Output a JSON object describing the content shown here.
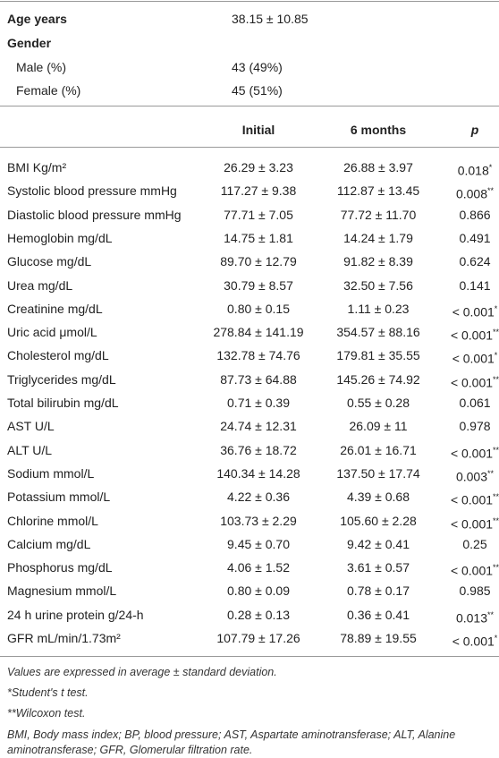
{
  "summary": [
    {
      "label": "Age years",
      "value": "38.15 ± 10.85",
      "bold": true
    },
    {
      "label": "Gender",
      "bold": true
    },
    {
      "label": "Male (%)",
      "value": "43 (49%)"
    },
    {
      "label": "Female (%)",
      "value": "45 (51%)"
    }
  ],
  "table": {
    "columns": [
      "Initial",
      "6 months",
      "p"
    ],
    "rows": [
      {
        "label": "BMI Kg/m²",
        "initial": "26.29 ± 3.23",
        "six_months": "26.88 ± 3.97",
        "p": "0.018",
        "sig": "*"
      },
      {
        "label": "Systolic blood pressure mmHg",
        "initial": "117.27 ± 9.38",
        "six_months": "112.87 ± 13.45",
        "p": "0.008",
        "sig": "**"
      },
      {
        "label": "Diastolic blood pressure mmHg",
        "initial": "77.71 ± 7.05",
        "six_months": "77.72 ± 11.70",
        "p": "0.866"
      },
      {
        "label": "Hemoglobin mg/dL",
        "initial": "14.75 ± 1.81",
        "six_months": "14.24 ± 1.79",
        "p": "0.491"
      },
      {
        "label": "Glucose mg/dL",
        "initial": "89.70 ± 12.79",
        "six_months": "91.82 ± 8.39",
        "p": "0.624"
      },
      {
        "label": "Urea mg/dL",
        "initial": "30.79 ± 8.57",
        "six_months": "32.50 ± 7.56",
        "p": "0.141"
      },
      {
        "label": "Creatinine mg/dL",
        "initial": "0.80 ± 0.15",
        "six_months": "1.11 ± 0.23",
        "p": "< 0.001",
        "sig": "*"
      },
      {
        "label": "Uric acid μmol/L",
        "initial": "278.84 ± 141.19",
        "six_months": "354.57 ± 88.16",
        "p": "< 0.001",
        "sig": "**"
      },
      {
        "label": "Cholesterol mg/dL",
        "initial": "132.78 ± 74.76",
        "six_months": "179.81 ± 35.55",
        "p": "< 0.001",
        "sig": "*"
      },
      {
        "label": "Triglycerides mg/dL",
        "initial": "87.73 ± 64.88",
        "six_months": "145.26 ± 74.92",
        "p": "< 0.001",
        "sig": "**"
      },
      {
        "label": "Total bilirubin mg/dL",
        "initial": "0.71 ± 0.39",
        "six_months": "0.55 ± 0.28",
        "p": "0.061"
      },
      {
        "label": "AST U/L",
        "initial": "24.74 ± 12.31",
        "six_months": "26.09 ± 11",
        "p": "0.978"
      },
      {
        "label": "ALT U/L",
        "initial": "36.76 ± 18.72",
        "six_months": "26.01 ± 16.71",
        "p": "< 0.001",
        "sig": "**"
      },
      {
        "label": "Sodium mmol/L",
        "initial": "140.34 ± 14.28",
        "six_months": "137.50 ± 17.74",
        "p": "0.003",
        "sig": "**"
      },
      {
        "label": "Potassium mmol/L",
        "initial": "4.22 ± 0.36",
        "six_months": "4.39 ± 0.68",
        "p": "< 0.001",
        "sig": "**"
      },
      {
        "label": "Chlorine mmol/L",
        "initial": "103.73 ± 2.29",
        "six_months": "105.60 ± 2.28",
        "p": "< 0.001",
        "sig": "**"
      },
      {
        "label": "Calcium mg/dL",
        "initial": "9.45 ± 0.70",
        "six_months": "9.42 ± 0.41",
        "p": "0.25"
      },
      {
        "label": "Phosphorus mg/dL",
        "initial": "4.06 ± 1.52",
        "six_months": "3.61 ± 0.57",
        "p": "< 0.001",
        "sig": "**"
      },
      {
        "label": "Magnesium mmol/L",
        "initial": "0.80 ± 0.09",
        "six_months": "0.78 ± 0.17",
        "p": "0.985"
      },
      {
        "label": "24 h urine protein g/24-h",
        "initial": "0.28 ± 0.13",
        "six_months": "0.36 ± 0.41",
        "p": "0.013",
        "sig": "**"
      },
      {
        "label": "GFR mL/min/1.73m²",
        "initial": "107.79 ± 17.26",
        "six_months": "78.89 ± 19.55",
        "p": "< 0.001",
        "sig": "*"
      }
    ]
  },
  "footnotes": [
    "Values are expressed in average ± standard deviation.",
    "*Student's t test.",
    "**Wilcoxon test.",
    "BMI, Body mass index; BP, blood pressure; AST, Aspartate aminotransferase; ALT, Alanine aminotransferase; GFR, Glomerular filtration rate."
  ]
}
